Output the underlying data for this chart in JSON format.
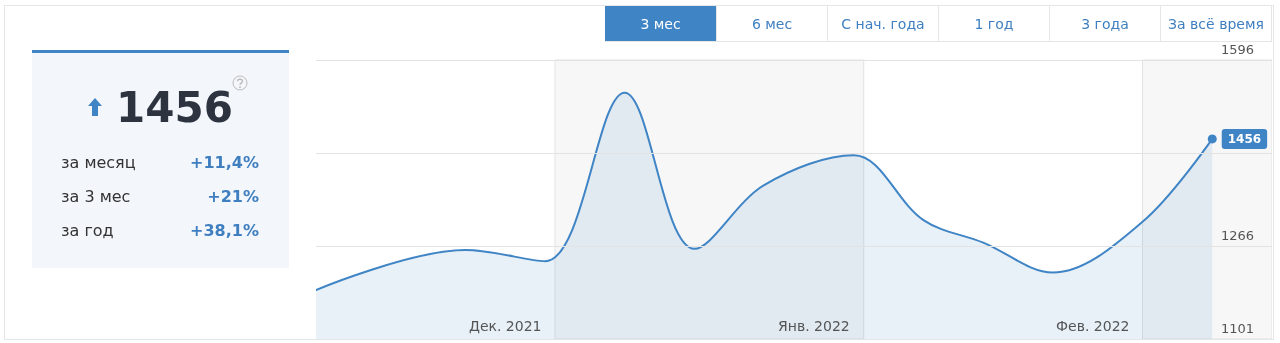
{
  "chart_data": {
    "type": "area",
    "x": [
      "2021-12-08",
      "2021-12-23",
      "2021-12-31",
      "2022-01-08",
      "2022-01-15",
      "2022-01-22",
      "2022-01-31",
      "2022-02-07",
      "2022-02-13",
      "2022-02-20",
      "2022-03-01",
      "2022-03-08"
    ],
    "values": [
      1188,
      1259,
      1239,
      1538,
      1261,
      1374,
      1427,
      1312,
      1272,
      1219,
      1309,
      1456
    ],
    "value_labels": [
      null,
      null,
      null,
      null,
      null,
      null,
      null,
      null,
      null,
      null,
      null,
      "1456"
    ],
    "color": "#3f84c5",
    "xlim": [
      "2021-12-08",
      "2022-03-14"
    ],
    "xticks": [
      {
        "value": "2021-12-27",
        "label": "Дек. 2021"
      },
      {
        "value": "2022-01-27",
        "label": "Янв. 2022"
      },
      {
        "value": "2022-02-24",
        "label": "Фев. 2022"
      }
    ],
    "ylim": [
      1101,
      1596
    ],
    "yticks": [
      1101,
      1266,
      {
        "value": 1431,
        "label": null
      },
      1596
    ],
    "grid": "y",
    "marker": "none",
    "line_style": "solid",
    "bands": [
      {
        "axis": "x",
        "from": "2022-01-01",
        "to": "2022-02-01",
        "color": "#f7f7f7"
      },
      {
        "axis": "x",
        "from": "2022-03-01",
        "to": "2022-03-14",
        "color": "#f7f7f7"
      }
    ],
    "annotations": [
      "1456",
      "за месяц",
      "+11,4%",
      "за 3 мес",
      "+21%",
      "за год",
      "+38,1%",
      "3 мес",
      "6 мес",
      "С нач. года",
      "1 год",
      "3 года",
      "За всё время"
    ]
  }
}
